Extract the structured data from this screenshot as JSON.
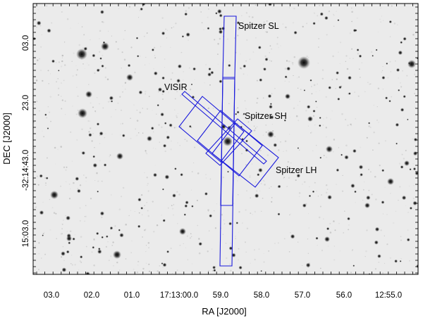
{
  "axes": {
    "xlabel": "RA [J2000]",
    "ylabel": "DEC [J2000]",
    "xticks": [
      "03.0",
      "02.0",
      "01.0",
      "17:13:00.0",
      "59.0",
      "58.0",
      "57.0",
      "56.0",
      "12:55.0"
    ],
    "yticks": [
      "03.0",
      "23.0",
      "-32:14:43.0",
      "15:03.0"
    ]
  },
  "labels": {
    "spitzer_sl": "Spitzer SL",
    "visir": "VISIR",
    "spitzer_sh": "Spitzer SH",
    "spitzer_lh": "Spitzer LH"
  },
  "colors": {
    "frame": "#000000",
    "footprint": "#1a1adc",
    "sky": "#ebebeb",
    "star": "#101010"
  }
}
